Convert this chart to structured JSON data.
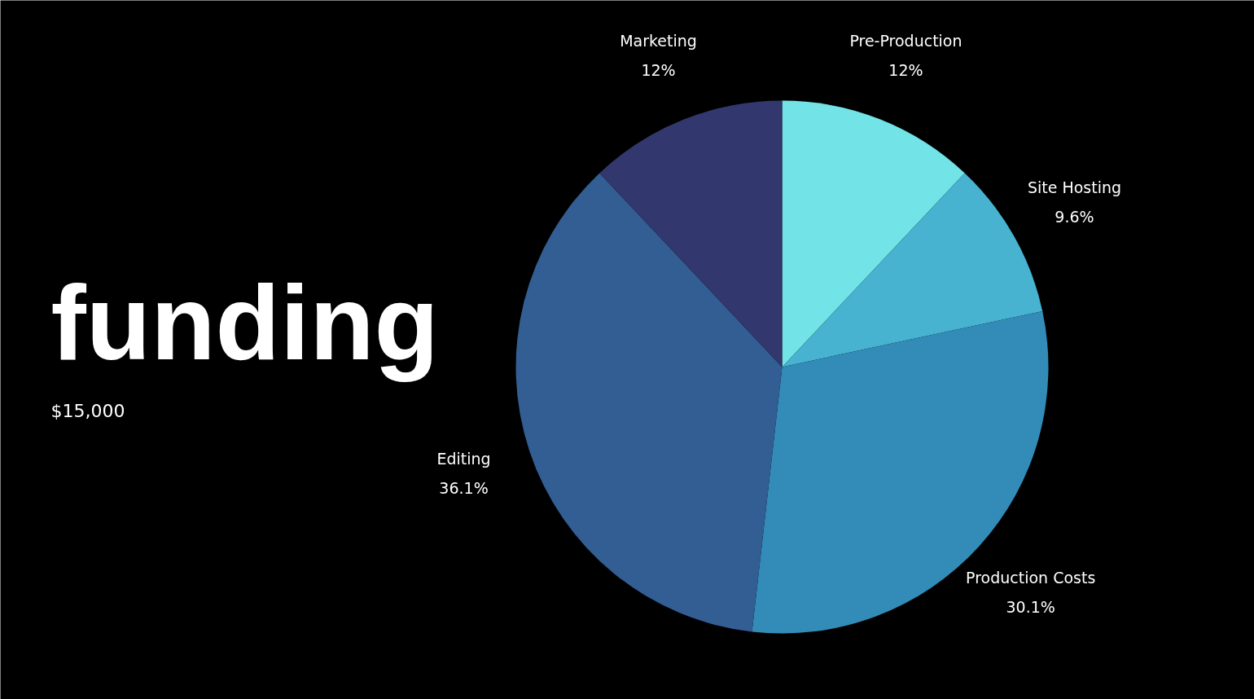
{
  "chart_data": {
    "type": "pie",
    "title": "funding",
    "subtitle": "$15,000",
    "categories": [
      "Pre-Production",
      "Site Hosting",
      "Production Costs",
      "Editing",
      "Marketing"
    ],
    "values": [
      12,
      9.6,
      30.1,
      36.1,
      12
    ],
    "value_labels": [
      "12%",
      "9.6%",
      "30.1%",
      "36.1%",
      "12%"
    ],
    "colors": [
      "#72e3e6",
      "#47b3d0",
      "#338cb8",
      "#325e94",
      "#32376d"
    ],
    "legend": false
  }
}
